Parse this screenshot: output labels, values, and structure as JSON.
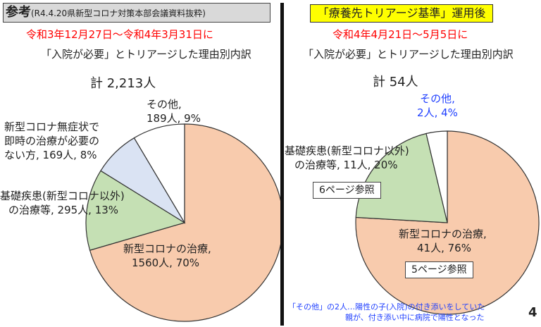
{
  "left": {
    "header_main": "参考",
    "header_sub": "(R4.4.20県新型コロナ対策本部会議資料抜粋)",
    "period": "令和3年12月27日～令和4年3月31日に",
    "subtitle": "「入院が必要」とトリアージした理由別内訳",
    "total": "計 2,213人"
  },
  "right": {
    "header": "「療養先トリアージ基準」運用後",
    "period": "令和4年4月21日～5月5日に",
    "subtitle": "「入院が必要」とトリアージした理由別内訳",
    "total": "計 54人",
    "ref6": "6ページ参照",
    "ref5": "5ページ参照",
    "note_line1": "「その他」の2人…陽性の子(入院)の付き添いをしていた",
    "note_line2": "親が、付き添い中に病院で陽性となった"
  },
  "page_number": "4",
  "colors": {
    "covid_treatment": "#f8cbad",
    "underlying_disease": "#c5e0b4",
    "asymptomatic": "#dae3f3",
    "other": "#ffffff",
    "header_gray": "#d9d9d9",
    "header_yellow": "#ffff00",
    "red_text": "#ff0000",
    "blue_text": "#1f3fff"
  },
  "chart_data": [
    {
      "type": "pie",
      "title": "計 2,213人",
      "slices": [
        {
          "key": "covid",
          "label": [
            "新型コロナの治療,",
            "1560人, 70%"
          ],
          "value": 1560,
          "percent": 70,
          "color": "#f8cbad"
        },
        {
          "key": "underlying",
          "label": [
            "基礎疾患(新型コロナ以外)",
            "の治療等, 295人, 13%"
          ],
          "value": 295,
          "percent": 13,
          "color": "#c5e0b4"
        },
        {
          "key": "asymptomatic",
          "label": [
            "新型コロナ無症状で",
            "即時の治療が必要の",
            "ない方, 169人, 8%"
          ],
          "value": 169,
          "percent": 8,
          "color": "#dae3f3"
        },
        {
          "key": "other",
          "label": [
            "その他,",
            "189人, 9%"
          ],
          "value": 189,
          "percent": 9,
          "color": "#ffffff"
        }
      ]
    },
    {
      "type": "pie",
      "title": "計 54人",
      "slices": [
        {
          "key": "covid",
          "label": [
            "新型コロナの治療,",
            "41人, 76%"
          ],
          "value": 41,
          "percent": 76,
          "color": "#f8cbad"
        },
        {
          "key": "underlying",
          "label": [
            "基礎疾患(新型コロナ以外)",
            "の治療等, 11人, 20%"
          ],
          "value": 11,
          "percent": 20,
          "color": "#c5e0b4"
        },
        {
          "key": "other",
          "label": [
            "その他,",
            "2人, 4%"
          ],
          "value": 2,
          "percent": 4,
          "color": "#ffffff"
        }
      ]
    }
  ]
}
